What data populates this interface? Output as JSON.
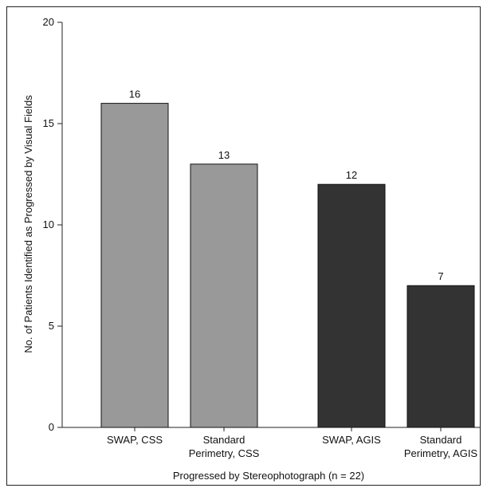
{
  "chart_data": {
    "type": "bar",
    "categories": [
      [
        "SWAP, CSS"
      ],
      [
        "Standard",
        "Perimetry, CSS"
      ],
      [
        "SWAP, AGIS"
      ],
      [
        "Standard",
        "Perimetry, AGIS"
      ]
    ],
    "values": [
      16,
      13,
      12,
      7
    ],
    "bar_colors": [
      "#999999",
      "#999999",
      "#333333",
      "#333333"
    ],
    "data_labels": [
      "16",
      "13",
      "12",
      "7"
    ],
    "title": "",
    "xlabel": "Progressed by Stereophotograph (n = 22)",
    "ylabel": "No. of Patients Identified as Progressed by Visual Fields",
    "ylim": [
      0,
      20
    ],
    "yticks": [
      0,
      5,
      10,
      15,
      20
    ],
    "grid": false,
    "legend": "none"
  }
}
